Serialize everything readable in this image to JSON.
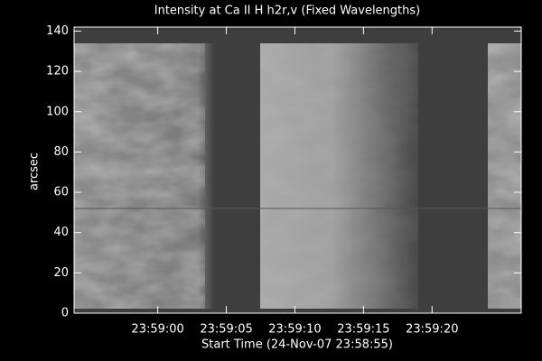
{
  "chart_data": {
    "type": "image",
    "title": "Intensity at Ca II H h2r,v (Fixed Wavelengths)",
    "xlabel": "Start Time (24-Nov-07 23:58:55)",
    "ylabel": "arcsec",
    "xlim": [
      -1.1,
      31.5
    ],
    "xticks": [
      {
        "value": 5,
        "label": "23:59:00"
      },
      {
        "value": 10,
        "label": "23:59:05"
      },
      {
        "value": 15,
        "label": "23:59:10"
      },
      {
        "value": 20,
        "label": "23:59:15"
      },
      {
        "value": 25,
        "label": "23:59:20"
      }
    ],
    "ylim": [
      0,
      142
    ],
    "yticks": [
      0,
      20,
      40,
      60,
      80,
      100,
      120,
      140
    ]
  }
}
